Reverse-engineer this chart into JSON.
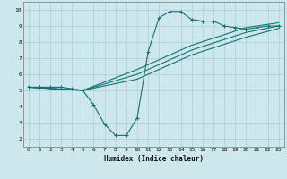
{
  "xlabel": "Humidex (Indice chaleur)",
  "xlim": [
    -0.5,
    23.5
  ],
  "ylim": [
    1.5,
    10.5
  ],
  "xticks": [
    0,
    1,
    2,
    3,
    4,
    5,
    6,
    7,
    8,
    9,
    10,
    11,
    12,
    13,
    14,
    15,
    16,
    17,
    18,
    19,
    20,
    21,
    22,
    23
  ],
  "yticks": [
    2,
    3,
    4,
    5,
    6,
    7,
    8,
    9,
    10
  ],
  "bg_color": "#cce8ec",
  "line_color": "#1a7070",
  "grid_color": "#aacfd6",
  "series_zigzag": {
    "x": [
      0,
      1,
      2,
      3,
      4,
      5,
      6,
      7,
      8,
      9,
      10,
      11,
      12,
      13,
      14,
      15,
      16,
      17,
      18,
      19,
      20,
      21,
      22,
      23
    ],
    "y": [
      5.2,
      5.2,
      5.2,
      5.2,
      5.1,
      5.0,
      4.1,
      2.9,
      2.2,
      2.2,
      3.3,
      7.4,
      9.5,
      9.9,
      9.9,
      9.4,
      9.3,
      9.3,
      9.0,
      8.9,
      8.8,
      8.9,
      9.0,
      9.0
    ]
  },
  "series_line1": {
    "x": [
      0,
      5,
      10,
      15,
      20,
      23
    ],
    "y": [
      5.2,
      5.0,
      6.3,
      7.8,
      8.9,
      9.2
    ]
  },
  "series_line2": {
    "x": [
      0,
      5,
      10,
      15,
      20,
      23
    ],
    "y": [
      5.2,
      5.0,
      6.0,
      7.5,
      8.6,
      9.0
    ]
  },
  "series_line3": {
    "x": [
      0,
      5,
      10,
      15,
      20,
      23
    ],
    "y": [
      5.2,
      5.0,
      5.7,
      7.2,
      8.3,
      8.85
    ]
  }
}
